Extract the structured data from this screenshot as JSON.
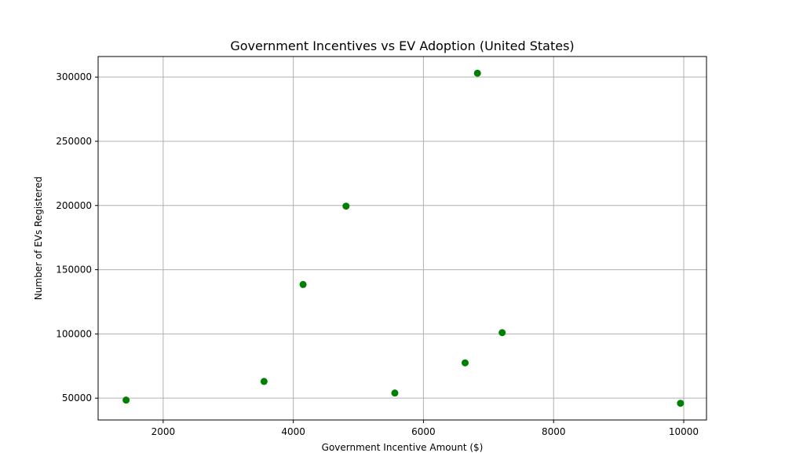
{
  "chart_data": {
    "type": "scatter",
    "title": "Government Incentives vs EV Adoption (United States)",
    "xlabel": "Government Incentive Amount ($)",
    "ylabel": "Number of EVs Registered",
    "xlim": [
      1000,
      10350
    ],
    "ylim": [
      33000,
      316000
    ],
    "xticks": [
      2000,
      4000,
      6000,
      8000,
      10000
    ],
    "yticks": [
      50000,
      100000,
      150000,
      200000,
      250000,
      300000
    ],
    "xtick_labels": [
      "2000",
      "4000",
      "6000",
      "8000",
      "10000"
    ],
    "ytick_labels": [
      "50000",
      "100000",
      "150000",
      "200000",
      "250000",
      "300000"
    ],
    "grid": true,
    "marker_color": "#008000",
    "points": [
      {
        "x": 1430,
        "y": 48500
      },
      {
        "x": 3550,
        "y": 63000
      },
      {
        "x": 4150,
        "y": 138500
      },
      {
        "x": 4810,
        "y": 199500
      },
      {
        "x": 5560,
        "y": 54000
      },
      {
        "x": 6640,
        "y": 77500
      },
      {
        "x": 6830,
        "y": 303000
      },
      {
        "x": 7210,
        "y": 101000
      },
      {
        "x": 9950,
        "y": 46000
      }
    ]
  }
}
